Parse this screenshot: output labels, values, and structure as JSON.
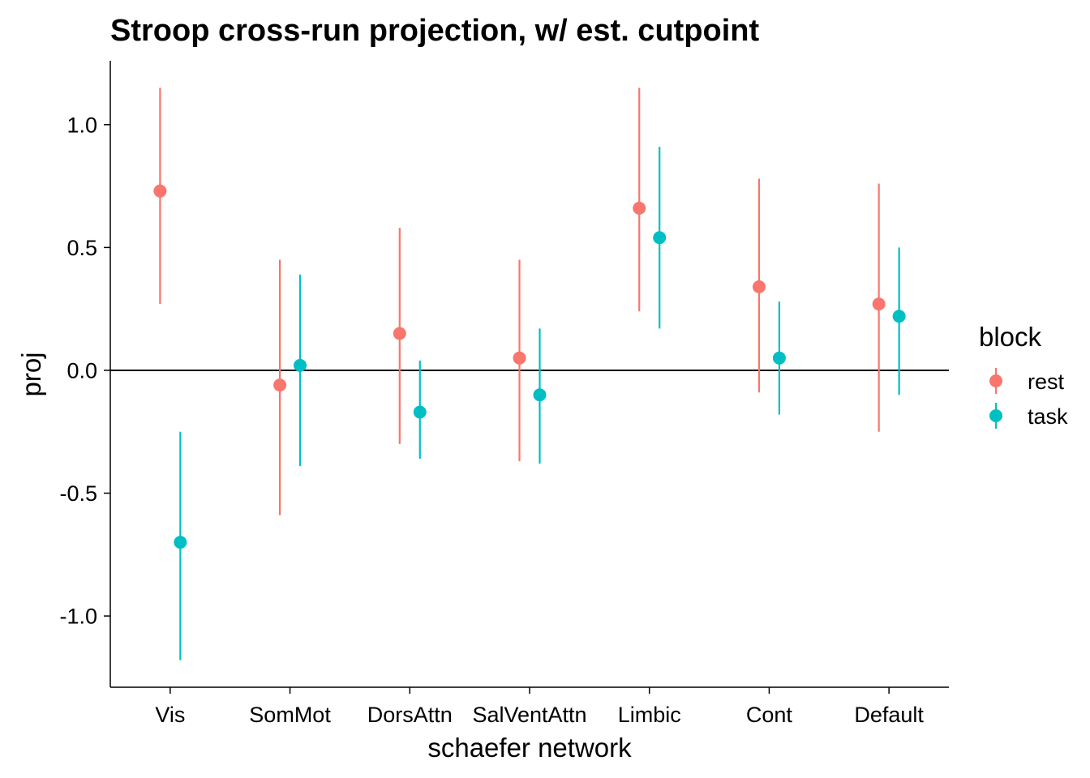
{
  "chart_data": {
    "type": "pointrange",
    "title": "Stroop cross-run projection, w/ est. cutpoint",
    "xlabel": "schaefer network",
    "ylabel": "proj",
    "categories": [
      "Vis",
      "SomMot",
      "DorsAttn",
      "SalVentAttn",
      "Limbic",
      "Cont",
      "Default"
    ],
    "ylim": [
      -1.29,
      1.26
    ],
    "yticks": [
      1.0,
      0.5,
      0.0,
      -0.5,
      -1.0
    ],
    "ytick_labels": [
      "1.0",
      "0.5",
      "0.0",
      "-0.5",
      "-1.0"
    ],
    "hline": 0,
    "grid": false,
    "legend": {
      "title": "block",
      "position": "right"
    },
    "series": [
      {
        "name": "rest",
        "color": "#F8766D",
        "y": [
          0.73,
          -0.06,
          0.15,
          0.05,
          0.66,
          0.34,
          0.27
        ],
        "lower": [
          0.27,
          -0.59,
          -0.3,
          -0.37,
          0.24,
          -0.09,
          -0.25
        ],
        "upper": [
          1.15,
          0.45,
          0.58,
          0.45,
          1.15,
          0.78,
          0.76
        ]
      },
      {
        "name": "task",
        "color": "#00BFC4",
        "y": [
          -0.7,
          0.02,
          -0.17,
          -0.1,
          0.54,
          0.05,
          0.22
        ],
        "lower": [
          -1.18,
          -0.39,
          -0.36,
          -0.38,
          0.17,
          -0.18,
          -0.1
        ],
        "upper": [
          -0.25,
          0.39,
          0.04,
          0.17,
          0.91,
          0.28,
          0.5
        ]
      }
    ]
  }
}
